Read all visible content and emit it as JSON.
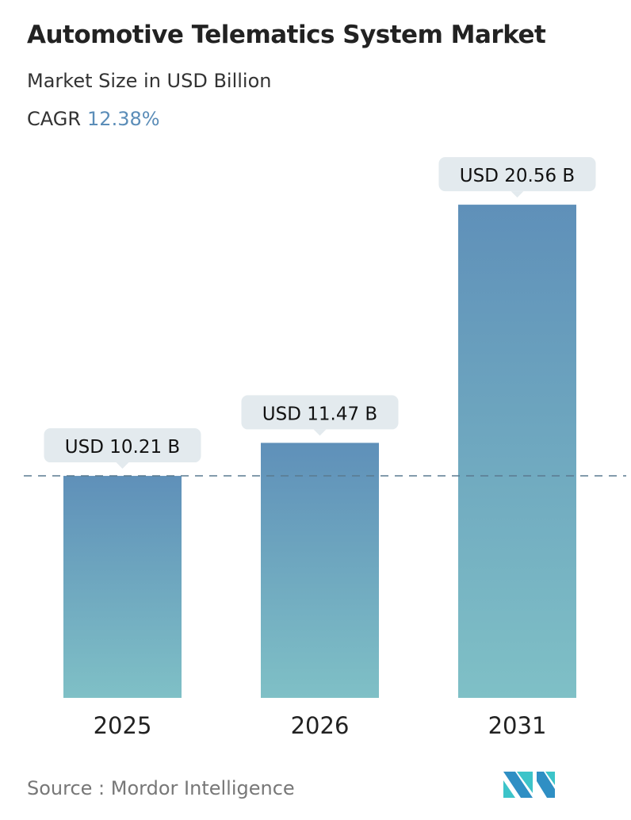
{
  "chart_data": {
    "type": "bar",
    "title": "Automotive Telematics System Market",
    "subtitle": "Market Size in USD Billion",
    "cagr_label": "CAGR",
    "cagr_value": "12.38%",
    "categories": [
      "2025",
      "2026",
      "2031"
    ],
    "values": [
      10.21,
      11.47,
      20.56
    ],
    "data_labels": [
      "USD 10.21 B",
      "USD 11.47 B",
      "USD 20.56 B"
    ],
    "reference_line": 10.21,
    "grid": false,
    "colors": {
      "bar_top": "#5f90b9",
      "bar_bottom": "#7fc0c6",
      "label_bg": "#e3eaee",
      "cagr": "#5b8db8",
      "dashed": "#5a7a90"
    }
  },
  "source": "Source :  Mordor Intelligence"
}
